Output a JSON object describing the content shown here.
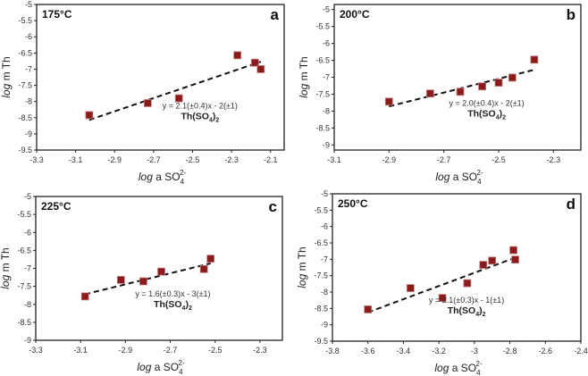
{
  "chart_data": [
    {
      "type": "scatter",
      "panel": "a",
      "temperature": "175°C",
      "xlabel": {
        "italic": "log",
        "text": " a SO",
        "sub": "4",
        "sup": "2-"
      },
      "ylabel": {
        "italic": "log",
        "text": " m Th"
      },
      "xlim": [
        -3.3,
        -2.03
      ],
      "ylim": [
        -9.5,
        -5
      ],
      "xticks": [
        -3.3,
        -3.1,
        -2.9,
        -2.7,
        -2.5,
        -2.3,
        -2.1
      ],
      "yticks": [
        -5,
        -5.5,
        -6,
        -6.5,
        -7,
        -7.5,
        -8,
        -8.5,
        -9,
        -9.5
      ],
      "grid": false,
      "points": [
        [
          -3.03,
          -8.42
        ],
        [
          -2.73,
          -8.05
        ],
        [
          -2.57,
          -7.9
        ],
        [
          -2.27,
          -6.57
        ],
        [
          -2.18,
          -6.8
        ],
        [
          -2.15,
          -7.0
        ]
      ],
      "fit": {
        "x": [
          -3.03,
          -2.15
        ],
        "y": [
          -8.57,
          -6.77
        ],
        "equation": "y = 2.1(±0.4)x - 2(±1)",
        "species": {
          "text": "Th(SO",
          "sub": "4",
          "close": ")",
          "sub2": "2"
        }
      }
    },
    {
      "type": "scatter",
      "panel": "b",
      "temperature": "200°C",
      "xlabel": {
        "italic": "log",
        "text": " a SO",
        "sub": "4",
        "sup": "2-"
      },
      "ylabel": {
        "italic": "log",
        "text": " m Th"
      },
      "xlim": [
        -3.1,
        -2.2
      ],
      "ylim": [
        -9.15,
        -4.85
      ],
      "xticks": [
        -3.1,
        -2.9,
        -2.7,
        -2.5,
        -2.3
      ],
      "yticks": [
        -5,
        -5.5,
        -6,
        -6.5,
        -7,
        -7.5,
        -8,
        -8.5,
        -9
      ],
      "grid": false,
      "points": [
        [
          -2.9,
          -7.72
        ],
        [
          -2.75,
          -7.48
        ],
        [
          -2.64,
          -7.43
        ],
        [
          -2.56,
          -7.27
        ],
        [
          -2.5,
          -7.16
        ],
        [
          -2.45,
          -7.01
        ],
        [
          -2.37,
          -6.48
        ]
      ],
      "fit": {
        "x": [
          -2.9,
          -2.37
        ],
        "y": [
          -7.86,
          -6.78
        ],
        "equation": "y = 2.0(±0.4)x - 2(±1)",
        "species": {
          "text": "Th(SO",
          "sub": "4",
          "close": ")",
          "sub2": "2"
        }
      }
    },
    {
      "type": "scatter",
      "panel": "c",
      "temperature": "225°C",
      "xlabel": {
        "italic": "log",
        "text": " a SO",
        "sub": "4",
        "sup": "2-"
      },
      "ylabel": {
        "italic": "log",
        "text": " m Th"
      },
      "xlim": [
        -3.3,
        -2.2
      ],
      "ylim": [
        -9,
        -5
      ],
      "xticks": [
        -3.3,
        -3.1,
        -2.9,
        -2.7,
        -2.5,
        -2.3
      ],
      "yticks": [
        -5,
        -5.5,
        -6,
        -6.5,
        -7,
        -7.5,
        -8,
        -8.5,
        -9
      ],
      "grid": false,
      "points": [
        [
          -3.08,
          -7.78
        ],
        [
          -2.92,
          -7.32
        ],
        [
          -2.82,
          -7.36
        ],
        [
          -2.74,
          -7.09
        ],
        [
          -2.55,
          -7.02
        ],
        [
          -2.52,
          -6.73
        ]
      ],
      "fit": {
        "x": [
          -3.08,
          -2.52
        ],
        "y": [
          -7.72,
          -6.86
        ],
        "equation": "y = 1.6(±0.3)x - 3(±1)",
        "species": {
          "text": "Th(SO",
          "sub": "4",
          "close": ")",
          "sub2": "2"
        }
      }
    },
    {
      "type": "scatter",
      "panel": "d",
      "temperature": "250°C",
      "xlabel": {
        "italic": "log",
        "text": " a SO",
        "sub": "4",
        "sup": "2-"
      },
      "ylabel": {
        "italic": "log",
        "text": " m Th"
      },
      "xlim": [
        -3.8,
        -2.4
      ],
      "ylim": [
        -9.5,
        -5
      ],
      "xticks": [
        -3.8,
        -3.6,
        -3.4,
        -3.2,
        -3,
        -2.8,
        -2.6,
        -2.4
      ],
      "yticks": [
        -5,
        -5.5,
        -6,
        -6.5,
        -7,
        -7.5,
        -8,
        -8.5,
        -9,
        -9.5
      ],
      "grid": false,
      "points": [
        [
          -3.6,
          -8.53
        ],
        [
          -3.36,
          -7.88
        ],
        [
          -3.18,
          -8.18
        ],
        [
          -3.04,
          -7.73
        ],
        [
          -2.95,
          -7.17
        ],
        [
          -2.9,
          -7.04
        ],
        [
          -2.78,
          -6.72
        ],
        [
          -2.77,
          -7.01
        ]
      ],
      "fit": {
        "x": [
          -3.6,
          -2.77
        ],
        "y": [
          -8.62,
          -6.95
        ],
        "equation": "y = 2.1(±0.3)x - 1(±1)",
        "species": {
          "text": "Th(SO",
          "sub": "4",
          "close": ")",
          "sub2": "2"
        }
      }
    }
  ],
  "colors": {
    "marker": "#8b1a1a",
    "marker_edge": "#c08080",
    "fit_line": "#111111",
    "axis": "#222222"
  }
}
